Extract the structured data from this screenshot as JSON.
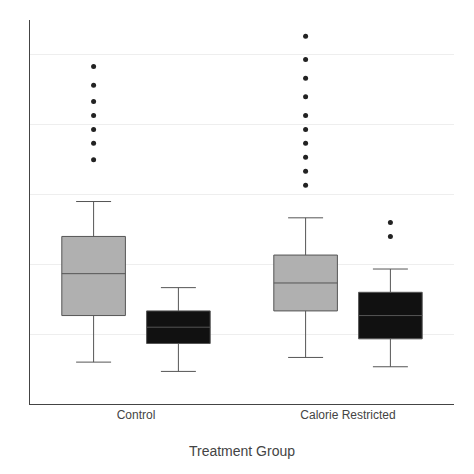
{
  "chart_data": {
    "type": "box",
    "xlabel": "Treatment Group",
    "categories": [
      "Control",
      "Calorie Restricted"
    ],
    "series": [
      {
        "color": "#b0b0b0",
        "boxes": [
          {
            "q1": 0.38,
            "median": 0.56,
            "q3": 0.72,
            "whisker_low": 0.18,
            "whisker_high": 0.87,
            "outliers": [
              1.05,
              1.12,
              1.18,
              1.24,
              1.3,
              1.37,
              1.45
            ]
          },
          {
            "q1": 0.4,
            "median": 0.52,
            "q3": 0.64,
            "whisker_low": 0.2,
            "whisker_high": 0.8,
            "outliers": [
              0.94,
              1.0,
              1.06,
              1.12,
              1.18,
              1.24,
              1.32,
              1.4,
              1.48,
              1.58
            ]
          }
        ]
      },
      {
        "color": "#111111",
        "boxes": [
          {
            "q1": 0.26,
            "median": 0.33,
            "q3": 0.4,
            "whisker_low": 0.14,
            "whisker_high": 0.5,
            "outliers": []
          },
          {
            "q1": 0.28,
            "median": 0.38,
            "q3": 0.48,
            "whisker_low": 0.16,
            "whisker_high": 0.58,
            "outliers": [
              0.72,
              0.78
            ]
          }
        ]
      }
    ],
    "ylim": [
      0.0,
      1.65
    ],
    "yticks": [
      0.0,
      0.3,
      0.6,
      0.9,
      1.2,
      1.5
    ],
    "grid": true,
    "tick_labels": "x"
  }
}
